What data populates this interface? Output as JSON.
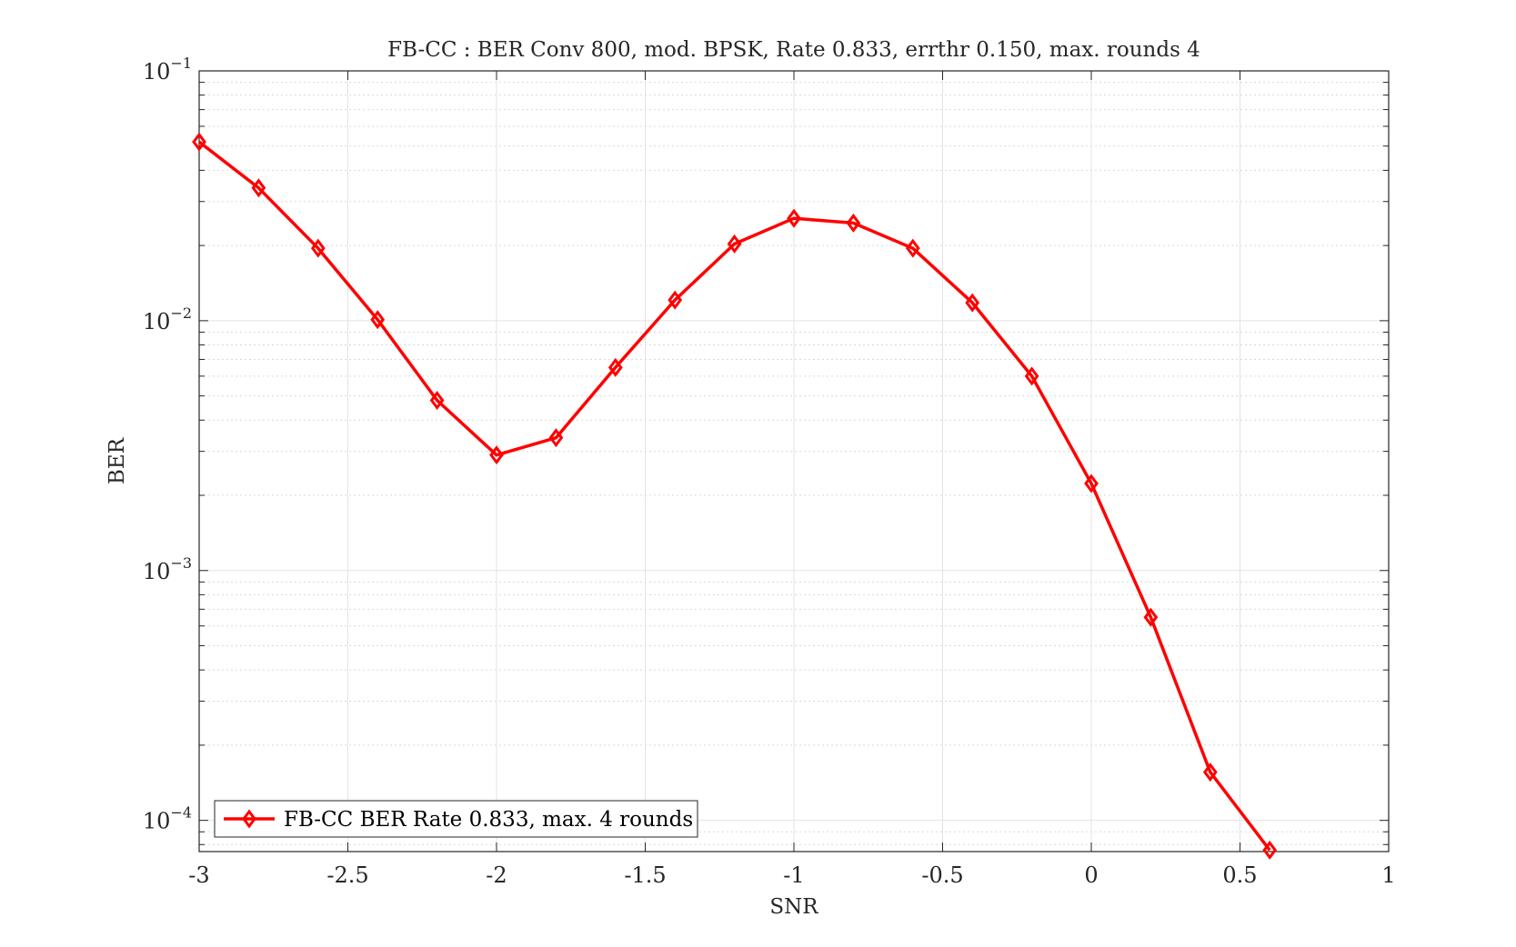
{
  "chart_data": {
    "type": "line",
    "title": "FB-CC : BER Conv 800, mod. BPSK, Rate 0.833, errthr 0.150, max. rounds 4",
    "xlabel": "SNR",
    "ylabel": "BER",
    "xlim": [
      -3,
      1
    ],
    "ylim": [
      7.5e-05,
      0.1
    ],
    "yscale": "log",
    "grid": true,
    "minor_grid": true,
    "legend_location": "bottom-left",
    "x_ticks": [
      {
        "value": -3,
        "label": "-3"
      },
      {
        "value": -2.5,
        "label": "-2.5"
      },
      {
        "value": -2,
        "label": "-2"
      },
      {
        "value": -1.5,
        "label": "-1.5"
      },
      {
        "value": -1,
        "label": "-1"
      },
      {
        "value": -0.5,
        "label": "-0.5"
      },
      {
        "value": 0,
        "label": "0"
      },
      {
        "value": 0.5,
        "label": "0.5"
      },
      {
        "value": 1,
        "label": "1"
      }
    ],
    "y_ticks": [
      {
        "value": 0.1,
        "base": "10",
        "exp": "−1"
      },
      {
        "value": 0.01,
        "base": "10",
        "exp": "−2"
      },
      {
        "value": 0.001,
        "base": "10",
        "exp": "−3"
      },
      {
        "value": 0.0001,
        "base": "10",
        "exp": "−4"
      }
    ],
    "series": [
      {
        "name": "FB-CC BER Rate 0.833, max. 4 rounds",
        "color": "#ff0000",
        "marker": "diamond",
        "x": [
          -3,
          -2.8,
          -2.6,
          -2.4,
          -2.2,
          -2,
          -1.8,
          -1.6,
          -1.4,
          -1.2,
          -1,
          -0.8,
          -0.6,
          -0.4,
          -0.2,
          0,
          0.2,
          0.4,
          0.6
        ],
        "y": [
          0.052,
          0.034,
          0.0195,
          0.0101,
          0.0048,
          0.0029,
          0.0034,
          0.0065,
          0.0121,
          0.0203,
          0.0257,
          0.0246,
          0.0195,
          0.0118,
          0.006,
          0.00223,
          0.00065,
          0.000156,
          7.6e-05
        ]
      }
    ]
  }
}
